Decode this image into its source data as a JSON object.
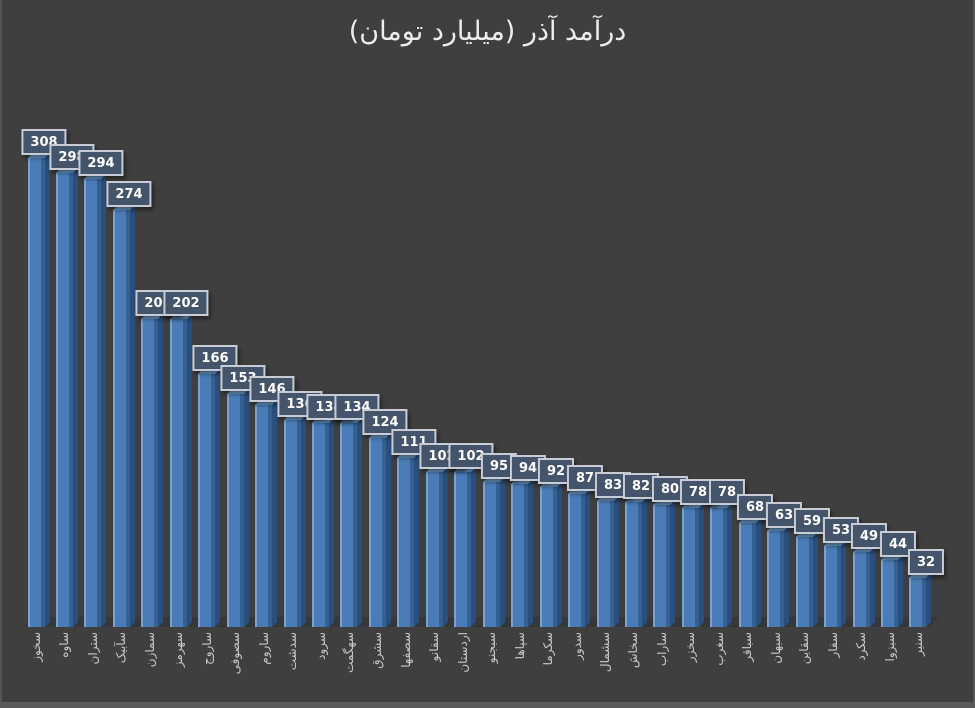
{
  "title": "درآمد آذر (میلیارد تومان)",
  "colors": {
    "background": "#3F3F3F",
    "bar_front": "#4A7DB8",
    "bar_highlight": "#7AA3CF",
    "bar_shade": "#35608F",
    "bar_top_face": "#6F9DCB",
    "bar_side_face": "#2A4E7D",
    "value_box_fill": "#44546A",
    "value_box_border": "#C8CCD4",
    "value_text": "#FFFFFF",
    "axis_text": "#C9C9C9",
    "title_text": "#EDEDED"
  },
  "chart_data": {
    "type": "bar",
    "style": "3d-column-dark",
    "title": "درآمد آذر (میلیارد تومان)",
    "xlabel": "",
    "ylabel": "",
    "ylim": [
      0,
      320
    ],
    "grid": false,
    "legend": null,
    "y_axis_visible": false,
    "data_labels": true,
    "category_label_rotation": -90,
    "categories": [
      "سخوز",
      "ساوه",
      "ستران",
      "سآبیک",
      "سمازن",
      "سهرمز",
      "ساروج",
      "سصوفی",
      "ساروم",
      "سدشت",
      "سرود",
      "سهگمت",
      "سشرق",
      "سصفها",
      "سفانو",
      "اردستان",
      "سبجنو",
      "سپاها",
      "سکرما",
      "سدور",
      "سشمال",
      "سخاش",
      "ساراب",
      "سخزر",
      "سغرب",
      "سباقر",
      "سبهان",
      "سقاین",
      "سفار",
      "سکرد",
      "سبزوا",
      "سنیر"
    ],
    "values": [
      308,
      298,
      294,
      274,
      202,
      202,
      166,
      153,
      146,
      136,
      134,
      134,
      124,
      111,
      102,
      102,
      95,
      94,
      92,
      87,
      83,
      82,
      80,
      78,
      78,
      68,
      63,
      59,
      53,
      49,
      44,
      32
    ]
  }
}
